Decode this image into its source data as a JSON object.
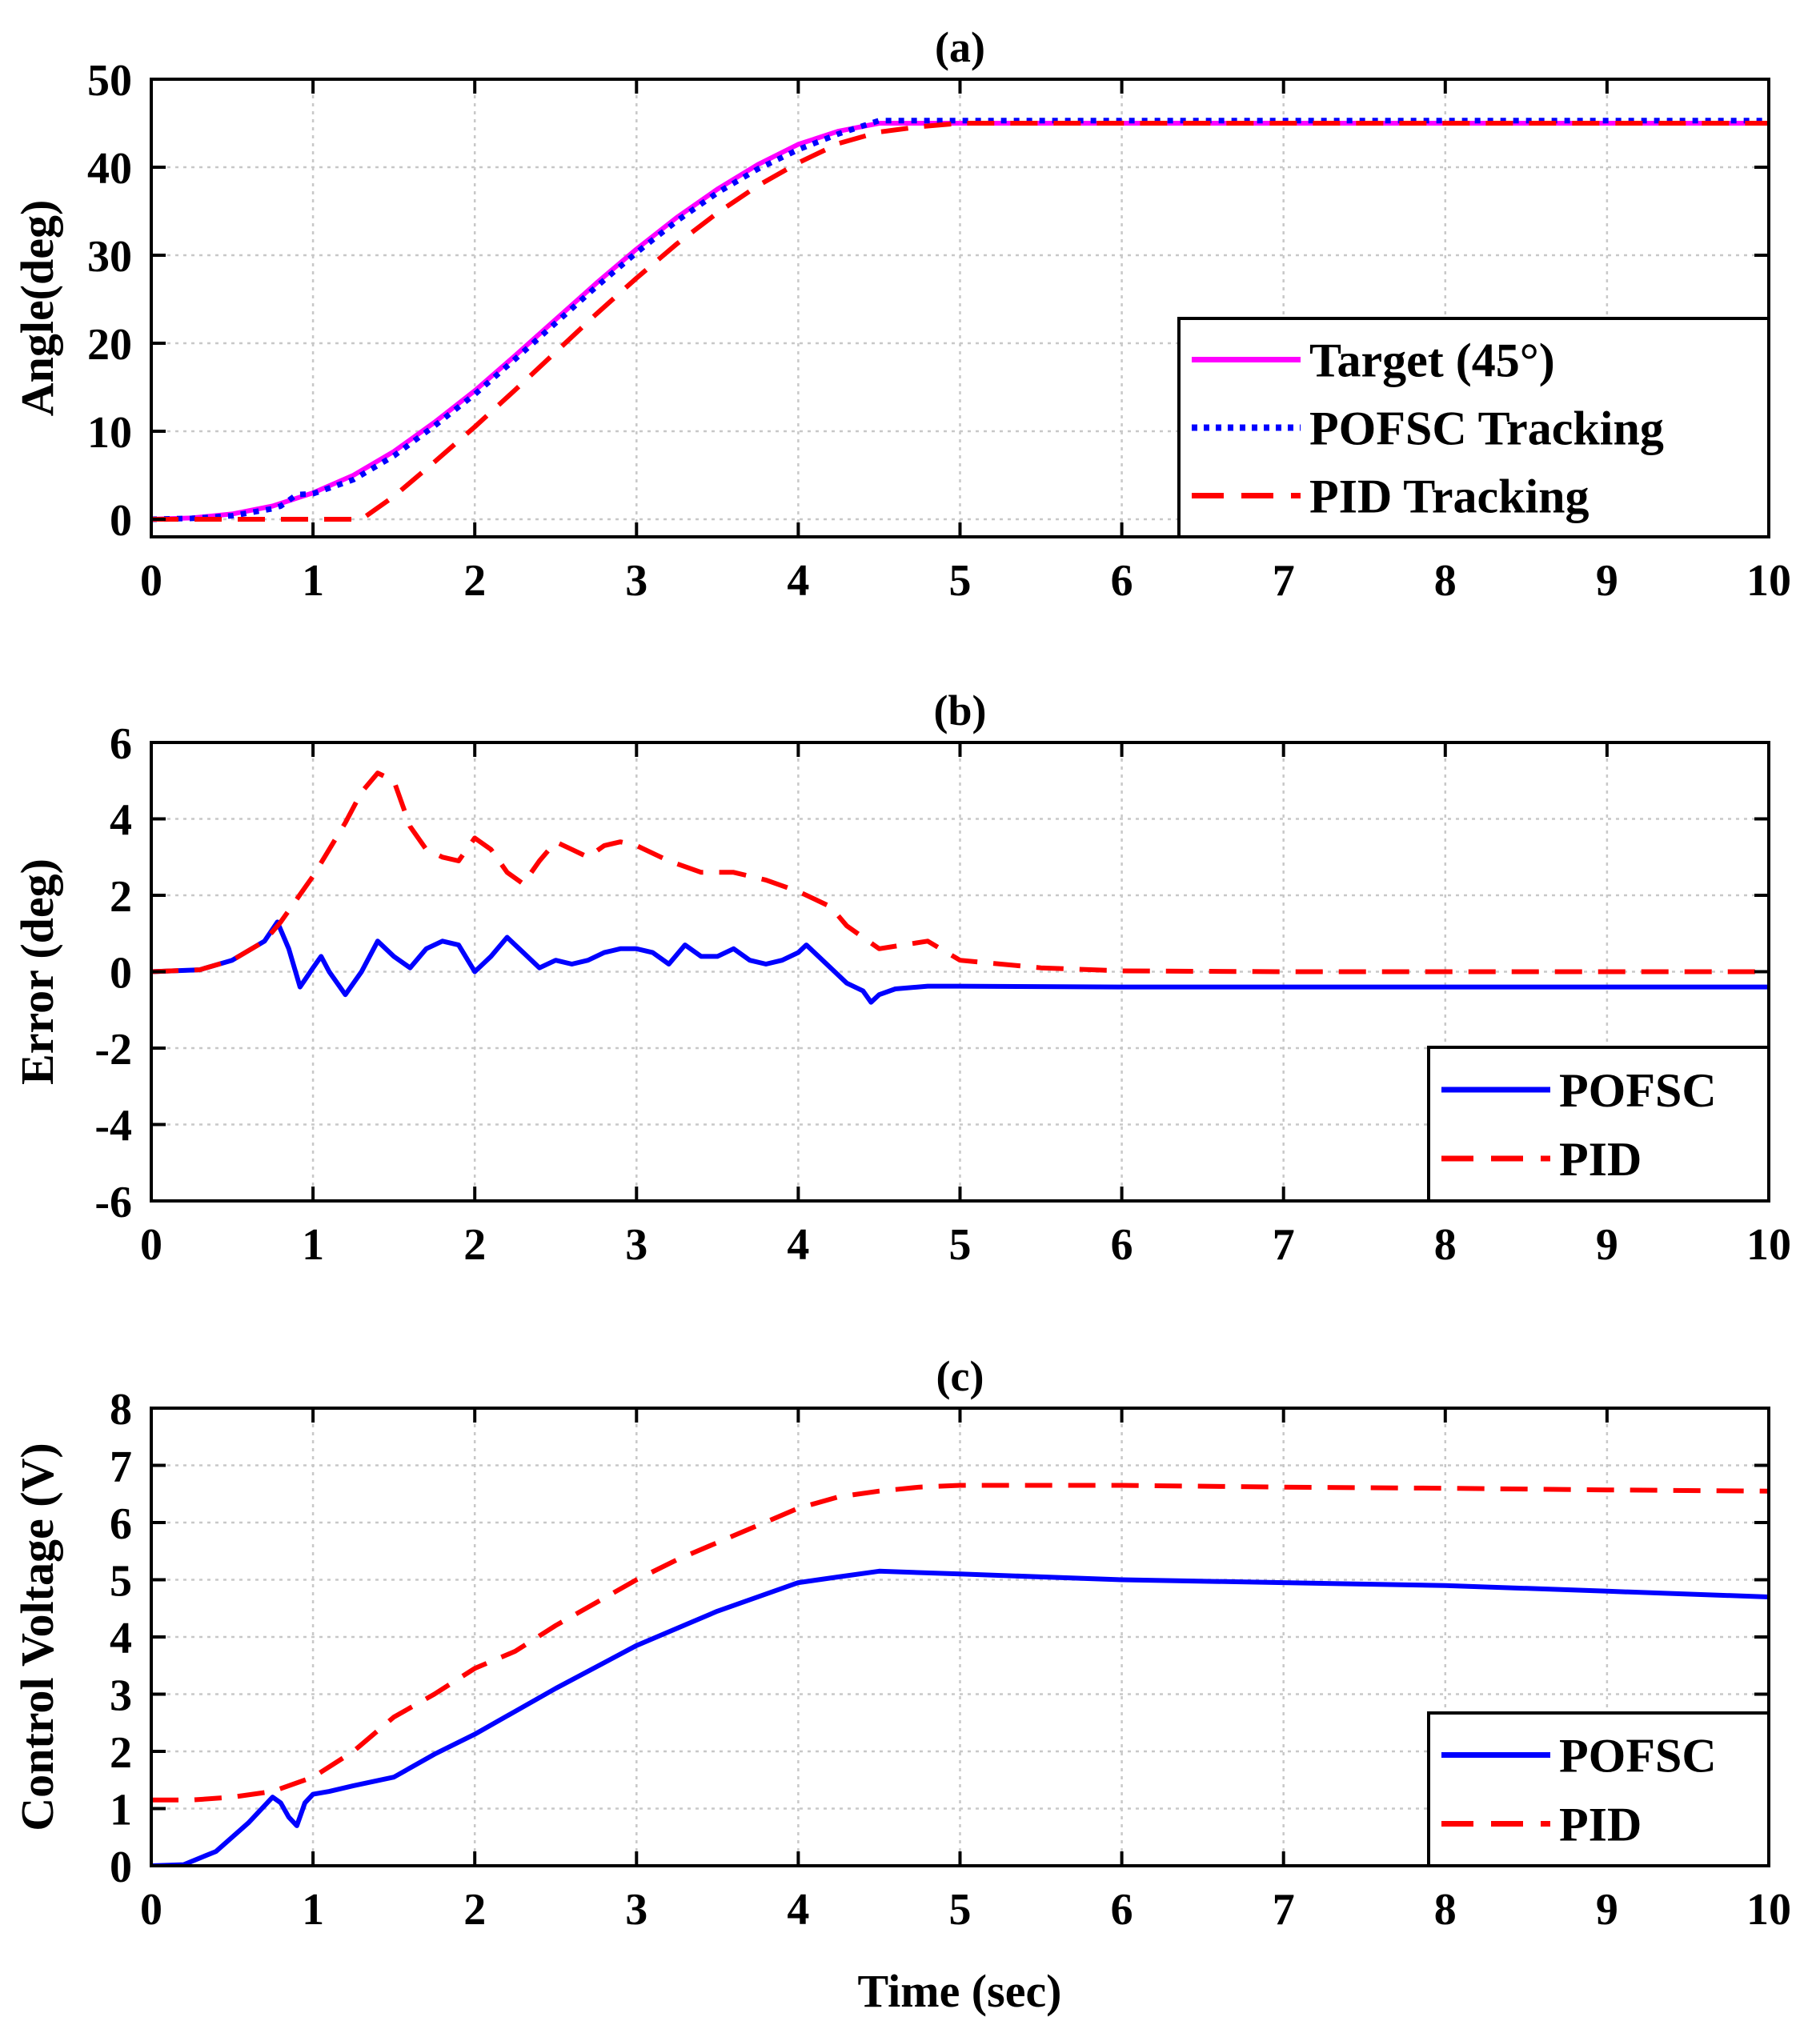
{
  "colors": {
    "target": "#ff00ff",
    "pofsc": "#0000ff",
    "pid": "#ff0000",
    "grid": "#c8c8c8"
  },
  "xlabel": "Time (sec)",
  "chart_data": [
    {
      "type": "line",
      "title": "(a)",
      "xlabel": "",
      "ylabel": "Angle(deg)",
      "xlim": [
        0,
        10
      ],
      "ylim": [
        -2,
        50
      ],
      "xticks": [
        "0",
        "1",
        "2",
        "3",
        "4",
        "5",
        "6",
        "7",
        "8",
        "9",
        "10"
      ],
      "xtick_values": [
        0,
        1,
        2,
        3,
        4,
        5,
        6,
        7,
        8,
        9,
        10
      ],
      "yticks": [
        "0",
        "10",
        "20",
        "30",
        "40",
        "50"
      ],
      "ytick_values": [
        0,
        10,
        20,
        30,
        40,
        50
      ],
      "grid": true,
      "legend_position": "bottom-right",
      "series": [
        {
          "name": "Target (45°)",
          "style": "solid",
          "color": "#ff00ff",
          "x": [
            0,
            0.25,
            0.5,
            0.75,
            1,
            1.25,
            1.5,
            1.75,
            2,
            2.25,
            2.5,
            2.75,
            3,
            3.25,
            3.5,
            3.75,
            4,
            4.25,
            4.5,
            5,
            6,
            7,
            8,
            9,
            10
          ],
          "y": [
            0,
            0.15,
            0.6,
            1.5,
            3,
            5,
            7.7,
            11,
            14.6,
            18.6,
            22.7,
            26.8,
            30.7,
            34.3,
            37.5,
            40.3,
            42.6,
            44.1,
            45,
            45,
            45,
            45,
            45,
            45,
            45
          ]
        },
        {
          "name": "POFSC Tracking",
          "style": "dotted",
          "color": "#0000ff",
          "x": [
            0,
            0.25,
            0.5,
            0.75,
            0.8,
            0.9,
            1,
            1.25,
            1.5,
            1.75,
            2,
            2.25,
            2.5,
            2.75,
            3,
            3.25,
            3.5,
            3.75,
            4,
            4.25,
            4.5,
            5,
            6,
            7,
            8,
            9,
            10
          ],
          "y": [
            0,
            0.1,
            0.4,
            1.2,
            1.5,
            2.8,
            2.9,
            4.5,
            7.2,
            10.6,
            14.2,
            18.2,
            22.3,
            26.4,
            30.3,
            33.9,
            37.1,
            39.8,
            42,
            43.8,
            45.3,
            45.3,
            45.3,
            45.3,
            45.3,
            45.3,
            45.3
          ]
        },
        {
          "name": "PID Tracking",
          "style": "dashed",
          "color": "#ff0000",
          "x": [
            0,
            0.5,
            1,
            1.3,
            1.5,
            1.75,
            2,
            2.25,
            2.5,
            2.75,
            3,
            3.25,
            3.5,
            3.75,
            4,
            4.25,
            4.5,
            4.75,
            5,
            6,
            7,
            8,
            9,
            10
          ],
          "y": [
            0,
            0,
            0,
            0,
            2.6,
            6.5,
            10.5,
            14.7,
            19,
            23.3,
            27.4,
            31.3,
            34.8,
            37.9,
            40.5,
            42.7,
            44,
            44.6,
            45,
            45,
            45,
            45,
            45,
            45
          ]
        }
      ]
    },
    {
      "type": "line",
      "title": "(b)",
      "xlabel": "",
      "ylabel": "Error (deg)",
      "xlim": [
        0,
        10
      ],
      "ylim": [
        -6,
        6
      ],
      "xticks": [
        "0",
        "1",
        "2",
        "3",
        "4",
        "5",
        "6",
        "7",
        "8",
        "9",
        "10"
      ],
      "xtick_values": [
        0,
        1,
        2,
        3,
        4,
        5,
        6,
        7,
        8,
        9,
        10
      ],
      "yticks": [
        "-6",
        "-4",
        "-2",
        "0",
        "2",
        "4",
        "6"
      ],
      "ytick_values": [
        -6,
        -4,
        -2,
        0,
        2,
        4,
        6
      ],
      "grid": true,
      "legend_position": "bottom-right",
      "series": [
        {
          "name": "POFSC",
          "style": "solid",
          "color": "#0000ff",
          "x": [
            0,
            0.3,
            0.5,
            0.7,
            0.78,
            0.85,
            0.92,
            1.0,
            1.05,
            1.1,
            1.2,
            1.3,
            1.4,
            1.5,
            1.6,
            1.7,
            1.8,
            1.9,
            2.0,
            2.1,
            2.2,
            2.3,
            2.4,
            2.5,
            2.6,
            2.7,
            2.8,
            2.9,
            3.0,
            3.1,
            3.2,
            3.3,
            3.4,
            3.5,
            3.6,
            3.7,
            3.8,
            3.9,
            4.0,
            4.05,
            4.1,
            4.2,
            4.3,
            4.4,
            4.45,
            4.5,
            4.6,
            4.8,
            5.0,
            6,
            7,
            8,
            9,
            10
          ],
          "y": [
            0,
            0.05,
            0.3,
            0.8,
            1.3,
            0.6,
            -0.4,
            0.1,
            0.4,
            0.0,
            -0.6,
            0.0,
            0.8,
            0.4,
            0.1,
            0.6,
            0.8,
            0.7,
            0.0,
            0.4,
            0.9,
            0.5,
            0.1,
            0.3,
            0.2,
            0.3,
            0.5,
            0.6,
            0.6,
            0.5,
            0.2,
            0.7,
            0.4,
            0.4,
            0.6,
            0.3,
            0.2,
            0.3,
            0.5,
            0.7,
            0.5,
            0.1,
            -0.3,
            -0.5,
            -0.8,
            -0.6,
            -0.45,
            -0.38,
            -0.38,
            -0.4,
            -0.4,
            -0.4,
            -0.4,
            -0.4
          ]
        },
        {
          "name": "PID",
          "style": "dashed",
          "color": "#ff0000",
          "x": [
            0,
            0.3,
            0.5,
            0.7,
            0.8,
            1.0,
            1.2,
            1.3,
            1.4,
            1.5,
            1.6,
            1.7,
            1.8,
            1.9,
            2.0,
            2.1,
            2.2,
            2.3,
            2.4,
            2.5,
            2.6,
            2.7,
            2.8,
            2.9,
            3.0,
            3.2,
            3.4,
            3.6,
            3.8,
            4.0,
            4.2,
            4.3,
            4.5,
            4.8,
            5.0,
            5.5,
            6,
            7,
            8,
            9,
            10
          ],
          "y": [
            0,
            0.05,
            0.3,
            0.8,
            1.3,
            2.5,
            3.9,
            4.7,
            5.2,
            5.0,
            3.8,
            3.2,
            3.0,
            2.9,
            3.5,
            3.2,
            2.6,
            2.3,
            2.9,
            3.4,
            3.2,
            3.0,
            3.3,
            3.4,
            3.3,
            2.9,
            2.6,
            2.6,
            2.4,
            2.1,
            1.7,
            1.2,
            0.6,
            0.8,
            0.3,
            0.1,
            0.02,
            0,
            0,
            0,
            0
          ]
        }
      ]
    },
    {
      "type": "line",
      "title": "(c)",
      "xlabel": "Time (sec)",
      "ylabel": "Control Voltage (V)",
      "xlim": [
        0,
        10
      ],
      "ylim": [
        0,
        8
      ],
      "xticks": [
        "0",
        "1",
        "2",
        "3",
        "4",
        "5",
        "6",
        "7",
        "8",
        "9",
        "10"
      ],
      "xtick_values": [
        0,
        1,
        2,
        3,
        4,
        5,
        6,
        7,
        8,
        9,
        10
      ],
      "yticks": [
        "0",
        "1",
        "2",
        "3",
        "4",
        "5",
        "6",
        "7",
        "8"
      ],
      "ytick_values": [
        0,
        1,
        2,
        3,
        4,
        5,
        6,
        7,
        8
      ],
      "grid": true,
      "legend_position": "bottom-right",
      "series": [
        {
          "name": "POFSC",
          "style": "solid",
          "color": "#0000ff",
          "x": [
            0,
            0.2,
            0.4,
            0.6,
            0.75,
            0.8,
            0.85,
            0.9,
            0.95,
            1.0,
            1.1,
            1.25,
            1.5,
            1.75,
            2.0,
            2.5,
            3.0,
            3.5,
            4.0,
            4.25,
            4.5,
            5,
            6,
            7,
            8,
            9,
            10
          ],
          "y": [
            0,
            0.02,
            0.25,
            0.75,
            1.2,
            1.1,
            0.85,
            0.7,
            1.1,
            1.25,
            1.3,
            1.4,
            1.55,
            1.95,
            2.3,
            3.1,
            3.85,
            4.45,
            4.95,
            5.05,
            5.15,
            5.1,
            5.0,
            4.95,
            4.9,
            4.8,
            4.7
          ]
        },
        {
          "name": "PID",
          "style": "dashed",
          "color": "#ff0000",
          "x": [
            0,
            0.25,
            0.5,
            0.75,
            1.0,
            1.25,
            1.5,
            1.75,
            2.0,
            2.25,
            2.5,
            2.75,
            3.0,
            3.25,
            3.5,
            3.75,
            4.0,
            4.25,
            4.5,
            4.75,
            5.0,
            6,
            7,
            8,
            9,
            10
          ],
          "y": [
            1.15,
            1.15,
            1.2,
            1.3,
            1.55,
            2.0,
            2.6,
            3.0,
            3.45,
            3.75,
            4.2,
            4.6,
            5.0,
            5.35,
            5.65,
            5.95,
            6.25,
            6.45,
            6.55,
            6.62,
            6.65,
            6.65,
            6.62,
            6.6,
            6.57,
            6.55
          ]
        }
      ]
    }
  ]
}
